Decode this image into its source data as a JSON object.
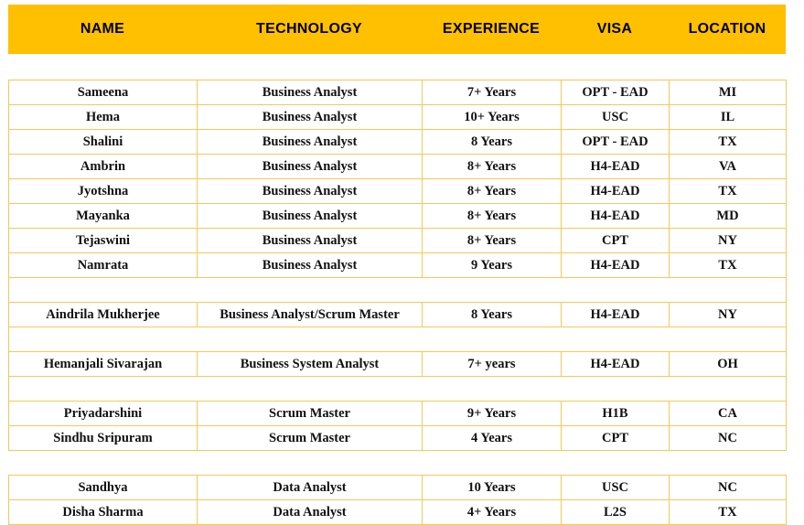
{
  "header": {
    "columns": [
      "NAME",
      "TECHNOLOGY",
      "EXPERIENCE",
      "VISA",
      "LOCATION"
    ]
  },
  "colors": {
    "header_bg": "#fec000",
    "border": "#f7c75a"
  },
  "table1": [
    [
      "Sameena",
      "Business Analyst",
      "7+ Years",
      "OPT - EAD",
      "MI"
    ],
    [
      "Hema",
      "Business Analyst",
      "10+ Years",
      "USC",
      "IL"
    ],
    [
      "Shalini",
      "Business Analyst",
      "8 Years",
      "OPT - EAD",
      "TX"
    ],
    [
      "Ambrin",
      "Business Analyst",
      "8+ Years",
      "H4-EAD",
      "VA"
    ],
    [
      "Jyotshna",
      "Business Analyst",
      "8+ Years",
      "H4-EAD",
      "TX"
    ],
    [
      "Mayanka",
      "Business Analyst",
      "8+ Years",
      "H4-EAD",
      "MD"
    ],
    [
      "Tejaswini",
      "Business Analyst",
      "8+ Years",
      "CPT",
      "NY"
    ],
    [
      "Namrata",
      "Business Analyst",
      "9 Years",
      "H4-EAD",
      "TX"
    ],
    [],
    [
      "Aindrila Mukherjee",
      "Business Analyst/Scrum Master",
      "8 Years",
      "H4-EAD",
      "NY"
    ],
    [],
    [
      "Hemanjali Sivarajan",
      "Business System Analyst",
      "7+ years",
      "H4-EAD",
      "OH"
    ],
    [],
    [
      "Priyadarshini",
      "Scrum Master",
      "9+ Years",
      "H1B",
      "CA"
    ],
    [
      "Sindhu Sripuram",
      "Scrum Master",
      "4 Years",
      "CPT",
      "NC"
    ]
  ],
  "table2": [
    [
      "Sandhya",
      "Data Analyst",
      "10 Years",
      "USC",
      "NC"
    ],
    [
      "Disha Sharma",
      "Data Analyst",
      "4+ Years",
      "L2S",
      "TX"
    ]
  ]
}
